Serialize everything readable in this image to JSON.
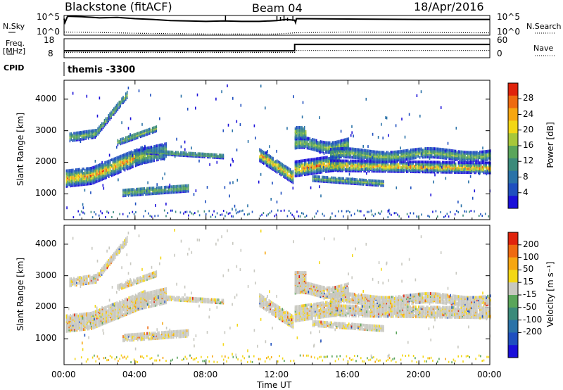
{
  "header": {
    "station": "Blackstone (fitACF)",
    "beam": "Beam 04",
    "date": "18/Apr/2016"
  },
  "left_labels": {
    "nsky": "N.Sky",
    "freq": "Freq.",
    "freq_unit": "[MHz]",
    "cpid": "CPID"
  },
  "right_labels": {
    "nsearch": "N.Search",
    "nave": "Nave"
  },
  "control_program": "themis -3300",
  "chart_data": [
    {
      "type": "line",
      "name": "noise-panel",
      "xlim": [
        0,
        24
      ],
      "yticks_left": [
        "10^5",
        "10^0"
      ],
      "yticks_right": [
        "10^5",
        "10^0"
      ],
      "series": [
        {
          "label": "N.Sky",
          "style": "solid",
          "points": [
            [
              0,
              4.2
            ],
            [
              0.05,
              3.2
            ],
            [
              0.2,
              4.8
            ],
            [
              1.0,
              4.7
            ],
            [
              2.0,
              4.4
            ],
            [
              3.0,
              4.5
            ],
            [
              4.0,
              4.2
            ],
            [
              5.0,
              4.0
            ],
            [
              6.0,
              3.7
            ],
            [
              7.0,
              3.6
            ],
            [
              8.0,
              3.5
            ],
            [
              9.0,
              3.6
            ],
            [
              10.0,
              3.5
            ],
            [
              11.0,
              3.5
            ],
            [
              12.0,
              3.7
            ],
            [
              12.5,
              4.0
            ],
            [
              13.0,
              3.8
            ],
            [
              13.05,
              3.2
            ],
            [
              13.1,
              4.2
            ],
            [
              16.0,
              4.1
            ],
            [
              20.0,
              4.0
            ],
            [
              24.0,
              4.0
            ]
          ]
        },
        {
          "label": "N.Search",
          "style": "dotted",
          "points": [
            [
              0,
              0.8
            ],
            [
              2,
              0.7
            ],
            [
              4,
              0.5
            ],
            [
              8,
              0.3
            ],
            [
              12,
              0.3
            ],
            [
              13,
              0.6
            ],
            [
              16,
              0.8
            ],
            [
              20,
              0.7
            ],
            [
              24,
              0.6
            ]
          ]
        }
      ]
    },
    {
      "type": "line",
      "name": "freq-nave-panel",
      "xlim": [
        0,
        24
      ],
      "yticks_left": [
        "18",
        "8"
      ],
      "yticks_right": [
        "60",
        "0"
      ],
      "series": [
        {
          "label": "Freq.",
          "style": "solid",
          "step_at": 13.0,
          "before": 10.5,
          "after": 15.5
        },
        {
          "label": "Nave",
          "style": "dotted",
          "step_at": 13.0,
          "before": 9.2,
          "after": 10.8
        }
      ]
    },
    {
      "type": "heatmap",
      "name": "power-panel",
      "ylabel": "Slant Range [km]",
      "yticks": [
        1000,
        2000,
        3000,
        4000
      ],
      "ylim": [
        180,
        4600
      ],
      "xlim": [
        0,
        24
      ],
      "colorbar_label": "Power [dB]",
      "colorbar_ticks": [
        4,
        8,
        12,
        16,
        20,
        24,
        28
      ],
      "colorbar_colors": [
        "#1a0fd9",
        "#1f4fbf",
        "#2a72a8",
        "#3b8a7a",
        "#5aa55a",
        "#a7c73a",
        "#f3d716",
        "#f6a611",
        "#ee6a10",
        "#e0230c"
      ]
    },
    {
      "type": "heatmap",
      "name": "velocity-panel",
      "ylabel": "Slant Range [km]",
      "yticks": [
        1000,
        2000,
        3000,
        4000
      ],
      "ylim": [
        180,
        4600
      ],
      "xlim": [
        0,
        24
      ],
      "xlabel": "Time UT",
      "xticks": [
        "00:00",
        "04:00",
        "08:00",
        "12:00",
        "16:00",
        "20:00",
        "00:00"
      ],
      "colorbar_label": "Velocity [m s⁻¹]",
      "colorbar_ticks": [
        200,
        100,
        50,
        15,
        -15,
        -50,
        -100,
        -200
      ],
      "colorbar_colors": [
        "#1a0fd9",
        "#1f4fbf",
        "#2a72a8",
        "#3b8a7a",
        "#5aa55a",
        "#c8c8c0",
        "#f3d716",
        "#f6a611",
        "#ee6a10",
        "#e0230c"
      ]
    }
  ]
}
